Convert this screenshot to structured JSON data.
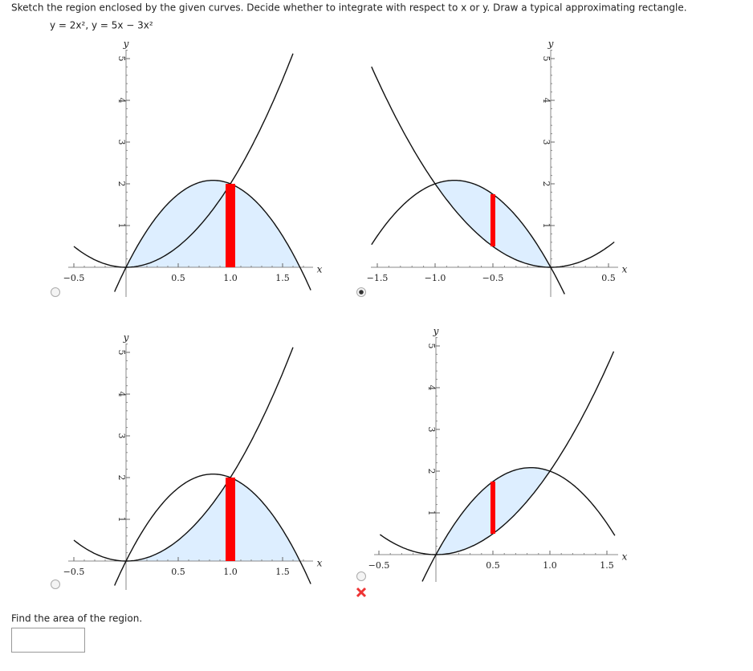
{
  "question": "Sketch the region enclosed by the given curves. Decide whether to integrate with respect to x or y. Draw a typical approximating rectangle.",
  "equations": "y = 2x²,   y = 5x − 3x²",
  "plots": [
    {
      "x_label": "x",
      "y_label": "y",
      "selected": false,
      "x_ticks": [
        {
          "value": -0.5,
          "label": "−0.5"
        },
        0.5,
        {
          "value": 1,
          "label": "1.0"
        },
        1.5
      ],
      "y_ticks": [
        1,
        2,
        3,
        4,
        5
      ]
    },
    {
      "x_label": "x",
      "y_label": "y",
      "selected": true,
      "x_ticks": [
        {
          "value": -1.5,
          "label": "−1.5"
        },
        {
          "value": -1,
          "label": "−1.0"
        },
        {
          "value": -0.5,
          "label": "−0.5"
        },
        0.5
      ],
      "y_ticks": [
        1,
        2,
        3,
        4,
        5
      ]
    },
    {
      "x_label": "x",
      "y_label": "y",
      "selected": false,
      "x_ticks": [
        {
          "value": -0.5,
          "label": "−0.5"
        },
        0.5,
        {
          "value": 1,
          "label": "1.0"
        },
        1.5
      ],
      "y_ticks": [
        1,
        2,
        3,
        4,
        5
      ]
    },
    {
      "x_label": "x",
      "y_label": "y",
      "selected": false,
      "incorrect": true,
      "x_ticks": [
        {
          "value": -0.5,
          "label": "−0.5"
        },
        0.5,
        {
          "value": 1,
          "label": "1.0"
        },
        1.5
      ],
      "y_ticks": [
        1,
        2,
        3,
        4,
        5
      ]
    }
  ],
  "area_prompt": "Find the area of the region."
}
